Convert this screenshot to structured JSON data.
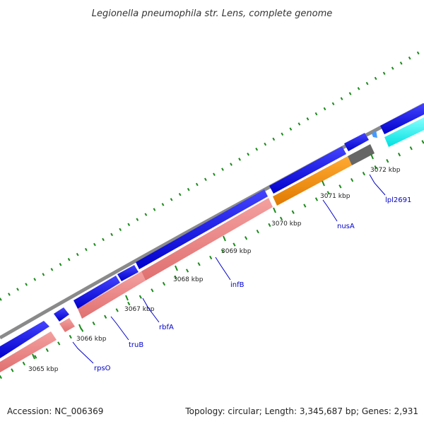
{
  "title": "Legionella pneumophila str. Lens, complete genome",
  "footer": {
    "accession": "Accession: NC_006369",
    "summary": "Topology: circular; Length: 3,345,687 bp; Genes: 2,931"
  },
  "colors": {
    "backbone": "#8c8c8c",
    "forward_cds": "#0000ee",
    "reverse_cds": "#ee8888",
    "orange_cds": "#f08a00",
    "gray_cds": "#666666",
    "cyan_cds": "#11ffff",
    "light_blue_cds": "#4499ff",
    "tick": "#1a8a1a",
    "label_line": "#0000cc",
    "label_text": "#0000cc"
  },
  "kbp_ticks": [
    {
      "label": "3065 kbp"
    },
    {
      "label": "3066 kbp"
    },
    {
      "label": "3067 kbp"
    },
    {
      "label": "3068 kbp"
    },
    {
      "label": "3069 kbp"
    },
    {
      "label": "3070 kbp"
    },
    {
      "label": "3071 kbp"
    },
    {
      "label": "3072 kbp"
    }
  ],
  "gene_labels": [
    {
      "name": "rpsO"
    },
    {
      "name": "truB"
    },
    {
      "name": "rbfA"
    },
    {
      "name": "infB"
    },
    {
      "name": "nusA"
    },
    {
      "name": "lpl2691"
    }
  ]
}
